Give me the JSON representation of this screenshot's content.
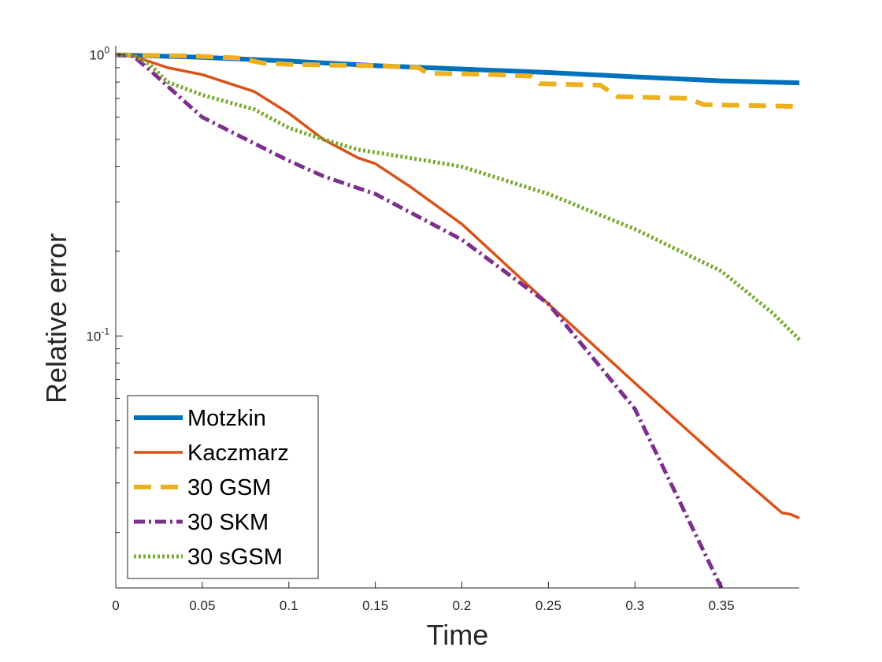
{
  "chart_data": {
    "type": "line",
    "title": "",
    "xlabel": "Time",
    "ylabel": "Relative error",
    "yscale": "log",
    "xlim": [
      0,
      0.395
    ],
    "ylim": [
      0.0127,
      1.05
    ],
    "grid": false,
    "legend_position": "bottom-left",
    "x_ticks": [
      {
        "value": 0,
        "label": "0"
      },
      {
        "value": 0.05,
        "label": "0.05"
      },
      {
        "value": 0.1,
        "label": "0.1"
      },
      {
        "value": 0.15,
        "label": "0.15"
      },
      {
        "value": 0.2,
        "label": "0.2"
      },
      {
        "value": 0.25,
        "label": "0.25"
      },
      {
        "value": 0.3,
        "label": "0.3"
      },
      {
        "value": 0.35,
        "label": "0.35"
      }
    ],
    "y_ticks": [
      {
        "value": 1,
        "base": "10",
        "exp": "0"
      },
      {
        "value": 0.1,
        "base": "10",
        "exp": "-1"
      }
    ],
    "series": [
      {
        "name": "Motzkin",
        "color": "#0072BD",
        "style": "solid-thick",
        "x": [
          0,
          0.05,
          0.1,
          0.15,
          0.2,
          0.25,
          0.3,
          0.35,
          0.395
        ],
        "y": [
          1.0,
          0.98,
          0.95,
          0.915,
          0.89,
          0.865,
          0.835,
          0.808,
          0.795
        ]
      },
      {
        "name": "Kaczmarz",
        "color": "#D95319",
        "style": "solid",
        "x": [
          0,
          0.01,
          0.03,
          0.05,
          0.08,
          0.1,
          0.12,
          0.14,
          0.15,
          0.17,
          0.2,
          0.25,
          0.3,
          0.35,
          0.385,
          0.39,
          0.395
        ],
        "y": [
          1.0,
          0.99,
          0.9,
          0.85,
          0.74,
          0.62,
          0.5,
          0.43,
          0.41,
          0.34,
          0.25,
          0.13,
          0.068,
          0.036,
          0.0235,
          0.0232,
          0.0225
        ]
      },
      {
        "name": "30 GSM",
        "color": "#EDB120",
        "style": "dashed",
        "x": [
          0,
          0.045,
          0.07,
          0.085,
          0.1,
          0.12,
          0.15,
          0.175,
          0.18,
          0.2,
          0.22,
          0.24,
          0.245,
          0.28,
          0.29,
          0.33,
          0.34,
          0.395
        ],
        "y": [
          1.0,
          0.99,
          0.975,
          0.935,
          0.925,
          0.92,
          0.915,
          0.9,
          0.86,
          0.855,
          0.85,
          0.84,
          0.79,
          0.78,
          0.71,
          0.7,
          0.665,
          0.655
        ]
      },
      {
        "name": "30 SKM",
        "color": "#7E2F8E",
        "style": "dashdot",
        "x": [
          0,
          0.01,
          0.02,
          0.04,
          0.05,
          0.07,
          0.1,
          0.12,
          0.15,
          0.2,
          0.25,
          0.3,
          0.35
        ],
        "y": [
          1.0,
          0.99,
          0.88,
          0.68,
          0.6,
          0.52,
          0.42,
          0.37,
          0.32,
          0.22,
          0.13,
          0.055,
          0.0127
        ]
      },
      {
        "name": "30 sGSM",
        "color": "#77AC30",
        "style": "dotted",
        "x": [
          0,
          0.01,
          0.02,
          0.03,
          0.05,
          0.08,
          0.1,
          0.12,
          0.14,
          0.15,
          0.18,
          0.2,
          0.25,
          0.3,
          0.35,
          0.38,
          0.395
        ],
        "y": [
          1.0,
          1.0,
          0.92,
          0.8,
          0.72,
          0.64,
          0.55,
          0.5,
          0.46,
          0.45,
          0.42,
          0.4,
          0.32,
          0.24,
          0.17,
          0.12,
          0.097
        ]
      }
    ]
  }
}
